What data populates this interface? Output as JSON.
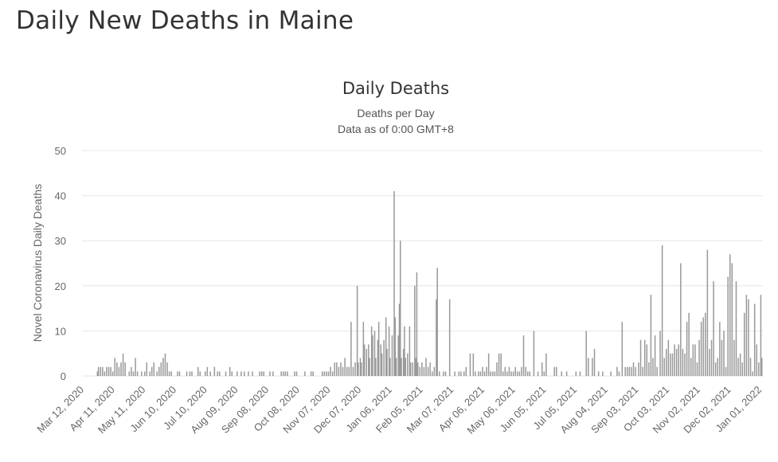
{
  "page": {
    "heading": "Daily New Deaths in Maine"
  },
  "chart_data": {
    "type": "bar",
    "title": "Daily Deaths",
    "subtitle": "Deaths per Day",
    "subtitle2": "Data as of 0:00 GMT+8",
    "ylabel": "Novel Coronavirus Daily Deaths",
    "xlabel": "",
    "ylim": [
      0,
      50
    ],
    "yticks": [
      0,
      10,
      20,
      30,
      40,
      50
    ],
    "grid": true,
    "legend": "none",
    "bar_color": "#999999",
    "x_start": "2020-03-12",
    "x_end": "2022-01-04",
    "x_tick_labels": [
      "Mar 12, 2020",
      "Apr 11, 2020",
      "May 11, 2020",
      "Jun 10, 2020",
      "Jul 10, 2020",
      "Aug 09, 2020",
      "Sep 08, 2020",
      "Oct 08, 2020",
      "Nov 07, 2020",
      "Dec 07, 2020",
      "Jan 06, 2021",
      "Feb 05, 2021",
      "Mar 07, 2021",
      "Apr 06, 2021",
      "May 06, 2021",
      "Jun 05, 2021",
      "Jul 05, 2021",
      "Aug 04, 2021",
      "Sep 03, 2021",
      "Oct 03, 2021",
      "Nov 02, 2021",
      "Dec 02, 2021",
      "Jan 01, 2022"
    ],
    "points": [
      [
        "2020-03-27",
        1
      ],
      [
        "2020-03-28",
        2
      ],
      [
        "2020-03-30",
        2
      ],
      [
        "2020-04-01",
        2
      ],
      [
        "2020-04-03",
        1
      ],
      [
        "2020-04-05",
        2
      ],
      [
        "2020-04-07",
        2
      ],
      [
        "2020-04-09",
        2
      ],
      [
        "2020-04-11",
        1
      ],
      [
        "2020-04-13",
        4
      ],
      [
        "2020-04-15",
        3
      ],
      [
        "2020-04-17",
        2
      ],
      [
        "2020-04-19",
        3
      ],
      [
        "2020-04-21",
        5
      ],
      [
        "2020-04-23",
        3
      ],
      [
        "2020-04-27",
        1
      ],
      [
        "2020-04-29",
        2
      ],
      [
        "2020-05-01",
        1
      ],
      [
        "2020-05-03",
        4
      ],
      [
        "2020-05-05",
        1
      ],
      [
        "2020-05-09",
        1
      ],
      [
        "2020-05-12",
        1
      ],
      [
        "2020-05-14",
        3
      ],
      [
        "2020-05-17",
        1
      ],
      [
        "2020-05-19",
        2
      ],
      [
        "2020-05-21",
        3
      ],
      [
        "2020-05-24",
        1
      ],
      [
        "2020-05-26",
        2
      ],
      [
        "2020-05-28",
        3
      ],
      [
        "2020-05-30",
        4
      ],
      [
        "2020-06-01",
        5
      ],
      [
        "2020-06-03",
        3
      ],
      [
        "2020-06-05",
        1
      ],
      [
        "2020-06-07",
        1
      ],
      [
        "2020-06-13",
        1
      ],
      [
        "2020-06-15",
        1
      ],
      [
        "2020-06-22",
        1
      ],
      [
        "2020-06-25",
        1
      ],
      [
        "2020-06-27",
        1
      ],
      [
        "2020-07-03",
        2
      ],
      [
        "2020-07-05",
        1
      ],
      [
        "2020-07-10",
        1
      ],
      [
        "2020-07-12",
        2
      ],
      [
        "2020-07-15",
        1
      ],
      [
        "2020-07-19",
        2
      ],
      [
        "2020-07-22",
        1
      ],
      [
        "2020-07-24",
        1
      ],
      [
        "2020-07-30",
        1
      ],
      [
        "2020-08-03",
        2
      ],
      [
        "2020-08-05",
        1
      ],
      [
        "2020-08-10",
        1
      ],
      [
        "2020-08-14",
        1
      ],
      [
        "2020-08-17",
        1
      ],
      [
        "2020-08-21",
        1
      ],
      [
        "2020-08-25",
        1
      ],
      [
        "2020-09-01",
        1
      ],
      [
        "2020-09-03",
        1
      ],
      [
        "2020-09-05",
        1
      ],
      [
        "2020-09-11",
        1
      ],
      [
        "2020-09-14",
        1
      ],
      [
        "2020-09-22",
        1
      ],
      [
        "2020-09-24",
        1
      ],
      [
        "2020-09-26",
        1
      ],
      [
        "2020-09-28",
        1
      ],
      [
        "2020-10-05",
        1
      ],
      [
        "2020-10-07",
        1
      ],
      [
        "2020-10-15",
        1
      ],
      [
        "2020-10-21",
        1
      ],
      [
        "2020-10-23",
        1
      ],
      [
        "2020-11-01",
        1
      ],
      [
        "2020-11-03",
        1
      ],
      [
        "2020-11-05",
        1
      ],
      [
        "2020-11-07",
        1
      ],
      [
        "2020-11-09",
        2
      ],
      [
        "2020-11-11",
        1
      ],
      [
        "2020-11-13",
        3
      ],
      [
        "2020-11-15",
        3
      ],
      [
        "2020-11-17",
        2
      ],
      [
        "2020-11-19",
        3
      ],
      [
        "2020-11-21",
        2
      ],
      [
        "2020-11-23",
        4
      ],
      [
        "2020-11-25",
        2
      ],
      [
        "2020-11-27",
        2
      ],
      [
        "2020-11-29",
        12
      ],
      [
        "2020-12-01",
        2
      ],
      [
        "2020-12-03",
        3
      ],
      [
        "2020-12-05",
        20
      ],
      [
        "2020-12-06",
        3
      ],
      [
        "2020-12-08",
        4
      ],
      [
        "2020-12-09",
        3
      ],
      [
        "2020-12-11",
        12
      ],
      [
        "2020-12-12",
        7
      ],
      [
        "2020-12-14",
        6
      ],
      [
        "2020-12-16",
        7
      ],
      [
        "2020-12-17",
        4
      ],
      [
        "2020-12-19",
        11
      ],
      [
        "2020-12-20",
        9
      ],
      [
        "2020-12-22",
        10
      ],
      [
        "2020-12-23",
        4
      ],
      [
        "2020-12-25",
        8
      ],
      [
        "2020-12-26",
        12
      ],
      [
        "2020-12-28",
        7
      ],
      [
        "2020-12-29",
        5
      ],
      [
        "2020-12-31",
        8
      ],
      [
        "2021-01-02",
        13
      ],
      [
        "2021-01-03",
        6
      ],
      [
        "2021-01-05",
        11
      ],
      [
        "2021-01-06",
        4
      ],
      [
        "2021-01-08",
        9
      ],
      [
        "2021-01-10",
        41
      ],
      [
        "2021-01-11",
        13
      ],
      [
        "2021-01-12",
        4
      ],
      [
        "2021-01-14",
        9
      ],
      [
        "2021-01-15",
        16
      ],
      [
        "2021-01-16",
        30
      ],
      [
        "2021-01-17",
        4
      ],
      [
        "2021-01-19",
        6
      ],
      [
        "2021-01-20",
        11
      ],
      [
        "2021-01-21",
        4
      ],
      [
        "2021-01-23",
        5
      ],
      [
        "2021-01-25",
        11
      ],
      [
        "2021-01-26",
        3
      ],
      [
        "2021-01-28",
        3
      ],
      [
        "2021-01-30",
        20
      ],
      [
        "2021-01-31",
        4
      ],
      [
        "2021-02-01",
        23
      ],
      [
        "2021-02-02",
        3
      ],
      [
        "2021-02-04",
        2
      ],
      [
        "2021-02-06",
        3
      ],
      [
        "2021-02-08",
        2
      ],
      [
        "2021-02-10",
        4
      ],
      [
        "2021-02-12",
        2
      ],
      [
        "2021-02-14",
        3
      ],
      [
        "2021-02-16",
        1
      ],
      [
        "2021-02-18",
        2
      ],
      [
        "2021-02-20",
        17
      ],
      [
        "2021-02-21",
        24
      ],
      [
        "2021-02-23",
        1
      ],
      [
        "2021-02-27",
        1
      ],
      [
        "2021-03-01",
        1
      ],
      [
        "2021-03-05",
        17
      ],
      [
        "2021-03-10",
        1
      ],
      [
        "2021-03-14",
        1
      ],
      [
        "2021-03-16",
        1
      ],
      [
        "2021-03-19",
        1
      ],
      [
        "2021-03-21",
        2
      ],
      [
        "2021-03-25",
        5
      ],
      [
        "2021-03-28",
        5
      ],
      [
        "2021-03-30",
        1
      ],
      [
        "2021-04-02",
        1
      ],
      [
        "2021-04-04",
        1
      ],
      [
        "2021-04-06",
        2
      ],
      [
        "2021-04-08",
        1
      ],
      [
        "2021-04-10",
        2
      ],
      [
        "2021-04-12",
        5
      ],
      [
        "2021-04-14",
        1
      ],
      [
        "2021-04-16",
        1
      ],
      [
        "2021-04-18",
        1
      ],
      [
        "2021-04-20",
        3
      ],
      [
        "2021-04-22",
        5
      ],
      [
        "2021-04-24",
        5
      ],
      [
        "2021-04-26",
        1
      ],
      [
        "2021-04-28",
        2
      ],
      [
        "2021-04-30",
        1
      ],
      [
        "2021-05-02",
        2
      ],
      [
        "2021-05-04",
        1
      ],
      [
        "2021-05-06",
        1
      ],
      [
        "2021-05-08",
        2
      ],
      [
        "2021-05-10",
        1
      ],
      [
        "2021-05-12",
        1
      ],
      [
        "2021-05-14",
        2
      ],
      [
        "2021-05-16",
        9
      ],
      [
        "2021-05-18",
        2
      ],
      [
        "2021-05-20",
        1
      ],
      [
        "2021-05-22",
        1
      ],
      [
        "2021-05-26",
        10
      ],
      [
        "2021-05-30",
        1
      ],
      [
        "2021-06-03",
        3
      ],
      [
        "2021-06-05",
        1
      ],
      [
        "2021-06-07",
        5
      ],
      [
        "2021-06-15",
        2
      ],
      [
        "2021-06-17",
        2
      ],
      [
        "2021-06-22",
        1
      ],
      [
        "2021-06-27",
        1
      ],
      [
        "2021-07-06",
        1
      ],
      [
        "2021-07-10",
        1
      ],
      [
        "2021-07-16",
        10
      ],
      [
        "2021-07-18",
        4
      ],
      [
        "2021-07-22",
        4
      ],
      [
        "2021-07-24",
        6
      ],
      [
        "2021-07-28",
        1
      ],
      [
        "2021-08-01",
        1
      ],
      [
        "2021-08-09",
        1
      ],
      [
        "2021-08-15",
        2
      ],
      [
        "2021-08-17",
        1
      ],
      [
        "2021-08-20",
        12
      ],
      [
        "2021-08-23",
        2
      ],
      [
        "2021-08-25",
        2
      ],
      [
        "2021-08-27",
        2
      ],
      [
        "2021-08-29",
        2
      ],
      [
        "2021-08-31",
        3
      ],
      [
        "2021-09-02",
        2
      ],
      [
        "2021-09-05",
        3
      ],
      [
        "2021-09-07",
        8
      ],
      [
        "2021-09-09",
        2
      ],
      [
        "2021-09-11",
        8
      ],
      [
        "2021-09-13",
        7
      ],
      [
        "2021-09-15",
        3
      ],
      [
        "2021-09-17",
        18
      ],
      [
        "2021-09-19",
        4
      ],
      [
        "2021-09-21",
        9
      ],
      [
        "2021-09-23",
        2
      ],
      [
        "2021-09-26",
        10
      ],
      [
        "2021-09-28",
        29
      ],
      [
        "2021-09-30",
        4
      ],
      [
        "2021-10-02",
        6
      ],
      [
        "2021-10-04",
        8
      ],
      [
        "2021-10-06",
        5
      ],
      [
        "2021-10-08",
        5
      ],
      [
        "2021-10-10",
        7
      ],
      [
        "2021-10-12",
        6
      ],
      [
        "2021-10-14",
        7
      ],
      [
        "2021-10-16",
        25
      ],
      [
        "2021-10-18",
        6
      ],
      [
        "2021-10-20",
        5
      ],
      [
        "2021-10-22",
        12
      ],
      [
        "2021-10-24",
        14
      ],
      [
        "2021-10-26",
        4
      ],
      [
        "2021-10-28",
        7
      ],
      [
        "2021-10-30",
        7
      ],
      [
        "2021-11-01",
        3
      ],
      [
        "2021-11-03",
        8
      ],
      [
        "2021-11-05",
        12
      ],
      [
        "2021-11-07",
        13
      ],
      [
        "2021-11-09",
        14
      ],
      [
        "2021-11-11",
        28
      ],
      [
        "2021-11-13",
        6
      ],
      [
        "2021-11-15",
        8
      ],
      [
        "2021-11-17",
        21
      ],
      [
        "2021-11-19",
        3
      ],
      [
        "2021-11-21",
        4
      ],
      [
        "2021-11-23",
        12
      ],
      [
        "2021-11-25",
        8
      ],
      [
        "2021-11-27",
        10
      ],
      [
        "2021-11-29",
        2
      ],
      [
        "2021-12-01",
        22
      ],
      [
        "2021-12-03",
        27
      ],
      [
        "2021-12-05",
        25
      ],
      [
        "2021-12-07",
        8
      ],
      [
        "2021-12-09",
        21
      ],
      [
        "2021-12-11",
        4
      ],
      [
        "2021-12-13",
        5
      ],
      [
        "2021-12-15",
        3
      ],
      [
        "2021-12-17",
        14
      ],
      [
        "2021-12-19",
        18
      ],
      [
        "2021-12-21",
        17
      ],
      [
        "2021-12-23",
        4
      ],
      [
        "2021-12-25",
        1
      ],
      [
        "2021-12-27",
        16
      ],
      [
        "2021-12-29",
        7
      ],
      [
        "2021-12-31",
        3
      ],
      [
        "2022-01-02",
        18
      ],
      [
        "2022-01-03",
        4
      ]
    ]
  }
}
